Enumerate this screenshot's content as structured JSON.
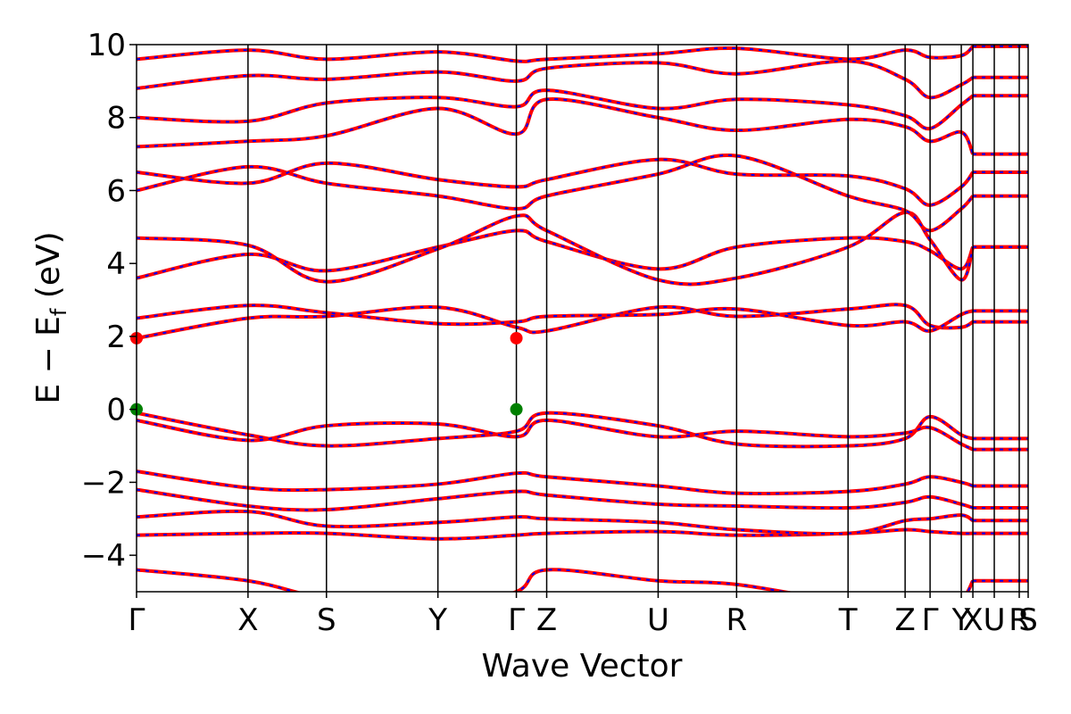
{
  "chart_data": {
    "type": "line",
    "title": "",
    "xlabel": "Wave Vector",
    "ylabel": "E − E",
    "ylabel_subscript": "f",
    "ylabel_unit": "(eV)",
    "ylim": [
      -5,
      10
    ],
    "yticks": [
      -4,
      -2,
      0,
      2,
      4,
      6,
      8,
      10
    ],
    "ytick_labels": [
      "−4",
      "−2",
      "0",
      "2",
      "4",
      "6",
      "8",
      "10"
    ],
    "xlim": [
      0,
      1
    ],
    "kpoints": [
      {
        "label": "Γ",
        "x": 0.0
      },
      {
        "label": "X",
        "x": 0.125
      },
      {
        "label": "S",
        "x": 0.213
      },
      {
        "label": "Y",
        "x": 0.338
      },
      {
        "label": "Γ",
        "x": 0.426
      },
      {
        "label": "Z",
        "x": 0.46
      },
      {
        "label": "U",
        "x": 0.585
      },
      {
        "label": "R",
        "x": 0.673
      },
      {
        "label": "T",
        "x": 0.798
      },
      {
        "label": "Z",
        "x": 0.862
      },
      {
        "label": "Γ",
        "x": 0.89
      },
      {
        "label": "Y",
        "x": 0.925
      },
      {
        "label": "X",
        "x": 0.938
      },
      {
        "label": "U",
        "x": 0.962
      },
      {
        "label": "R",
        "x": 0.99
      },
      {
        "label": "S",
        "x": 1.0
      }
    ],
    "series_style": [
      {
        "color": "#ff0000",
        "role": "solid"
      },
      {
        "color": "#0000ff",
        "role": "dashed"
      }
    ],
    "markers": [
      {
        "x": 0.0,
        "y": 1.95,
        "color": "#ff0000"
      },
      {
        "x": 0.426,
        "y": 1.95,
        "color": "#ff0000"
      },
      {
        "x": 0.0,
        "y": 0.0,
        "color": "#008000"
      },
      {
        "x": 0.426,
        "y": 0.0,
        "color": "#008000"
      }
    ],
    "bands": [
      {
        "y": [
          -4.4,
          -4.7,
          -5.2,
          -5.6,
          -5.0,
          -4.4,
          -4.7,
          -4.8,
          -5.3,
          -5.4,
          -5.5,
          -5.2,
          -4.7
        ]
      },
      {
        "y": [
          -3.45,
          -3.4,
          -3.4,
          -3.55,
          -3.45,
          -3.4,
          -3.35,
          -3.45,
          -3.4,
          -3.3,
          -3.35,
          -3.4,
          -3.4
        ]
      },
      {
        "y": [
          -2.95,
          -2.8,
          -3.2,
          -3.1,
          -2.95,
          -3.0,
          -3.1,
          -3.3,
          -3.4,
          -3.05,
          -3.0,
          -2.9,
          -3.05
        ]
      },
      {
        "y": [
          -2.2,
          -2.65,
          -2.75,
          -2.45,
          -2.25,
          -2.35,
          -2.6,
          -2.65,
          -2.7,
          -2.55,
          -2.4,
          -2.6,
          -2.7
        ]
      },
      {
        "y": [
          -1.7,
          -2.15,
          -2.2,
          -2.05,
          -1.75,
          -1.85,
          -2.1,
          -2.3,
          -2.25,
          -2.05,
          -1.85,
          -2.0,
          -2.1
        ]
      },
      {
        "y": [
          -0.1,
          -0.7,
          -1.0,
          -0.8,
          -0.6,
          -0.1,
          -0.45,
          -0.95,
          -1.0,
          -0.8,
          -0.2,
          -0.7,
          -0.8
        ]
      },
      {
        "y": [
          -0.3,
          -0.85,
          -0.45,
          -0.4,
          -0.75,
          -0.3,
          -0.75,
          -0.6,
          -0.75,
          -0.65,
          -0.5,
          -0.95,
          -1.1
        ]
      },
      {
        "y": [
          1.95,
          2.5,
          2.55,
          2.8,
          2.25,
          2.15,
          2.8,
          2.55,
          2.75,
          2.85,
          2.3,
          2.25,
          2.4
        ]
      },
      {
        "y": [
          2.5,
          2.85,
          2.65,
          2.35,
          2.4,
          2.55,
          2.6,
          2.75,
          2.3,
          2.4,
          2.15,
          2.6,
          2.7
        ]
      },
      {
        "y": [
          3.6,
          4.25,
          3.8,
          4.45,
          4.9,
          4.6,
          3.85,
          4.45,
          4.7,
          4.6,
          4.35,
          3.85,
          4.45
        ]
      },
      {
        "y": [
          4.7,
          4.5,
          3.5,
          4.4,
          5.3,
          4.9,
          3.55,
          3.6,
          4.45,
          5.4,
          4.65,
          3.55,
          4.45
        ]
      },
      {
        "y": [
          6.0,
          6.65,
          6.2,
          5.85,
          5.5,
          5.85,
          6.45,
          6.95,
          5.85,
          5.45,
          4.9,
          5.5,
          5.85
        ]
      },
      {
        "y": [
          6.5,
          6.2,
          6.75,
          6.3,
          6.1,
          6.3,
          6.85,
          6.45,
          6.4,
          6.05,
          5.6,
          6.1,
          6.5
        ]
      },
      {
        "y": [
          7.2,
          7.35,
          7.5,
          8.25,
          7.55,
          8.5,
          8.0,
          7.65,
          7.95,
          7.75,
          7.35,
          7.6,
          7.0
        ]
      },
      {
        "y": [
          8.0,
          7.9,
          8.4,
          8.55,
          8.3,
          8.75,
          8.25,
          8.5,
          8.35,
          8.05,
          7.7,
          8.35,
          8.6
        ]
      },
      {
        "y": [
          8.8,
          9.15,
          9.05,
          9.25,
          9.0,
          9.35,
          9.5,
          9.2,
          9.55,
          9.05,
          8.55,
          8.9,
          9.1
        ]
      },
      {
        "y": [
          9.6,
          9.85,
          9.6,
          9.8,
          9.55,
          9.6,
          9.75,
          9.9,
          9.6,
          9.85,
          9.65,
          9.7,
          9.95
        ]
      }
    ]
  }
}
